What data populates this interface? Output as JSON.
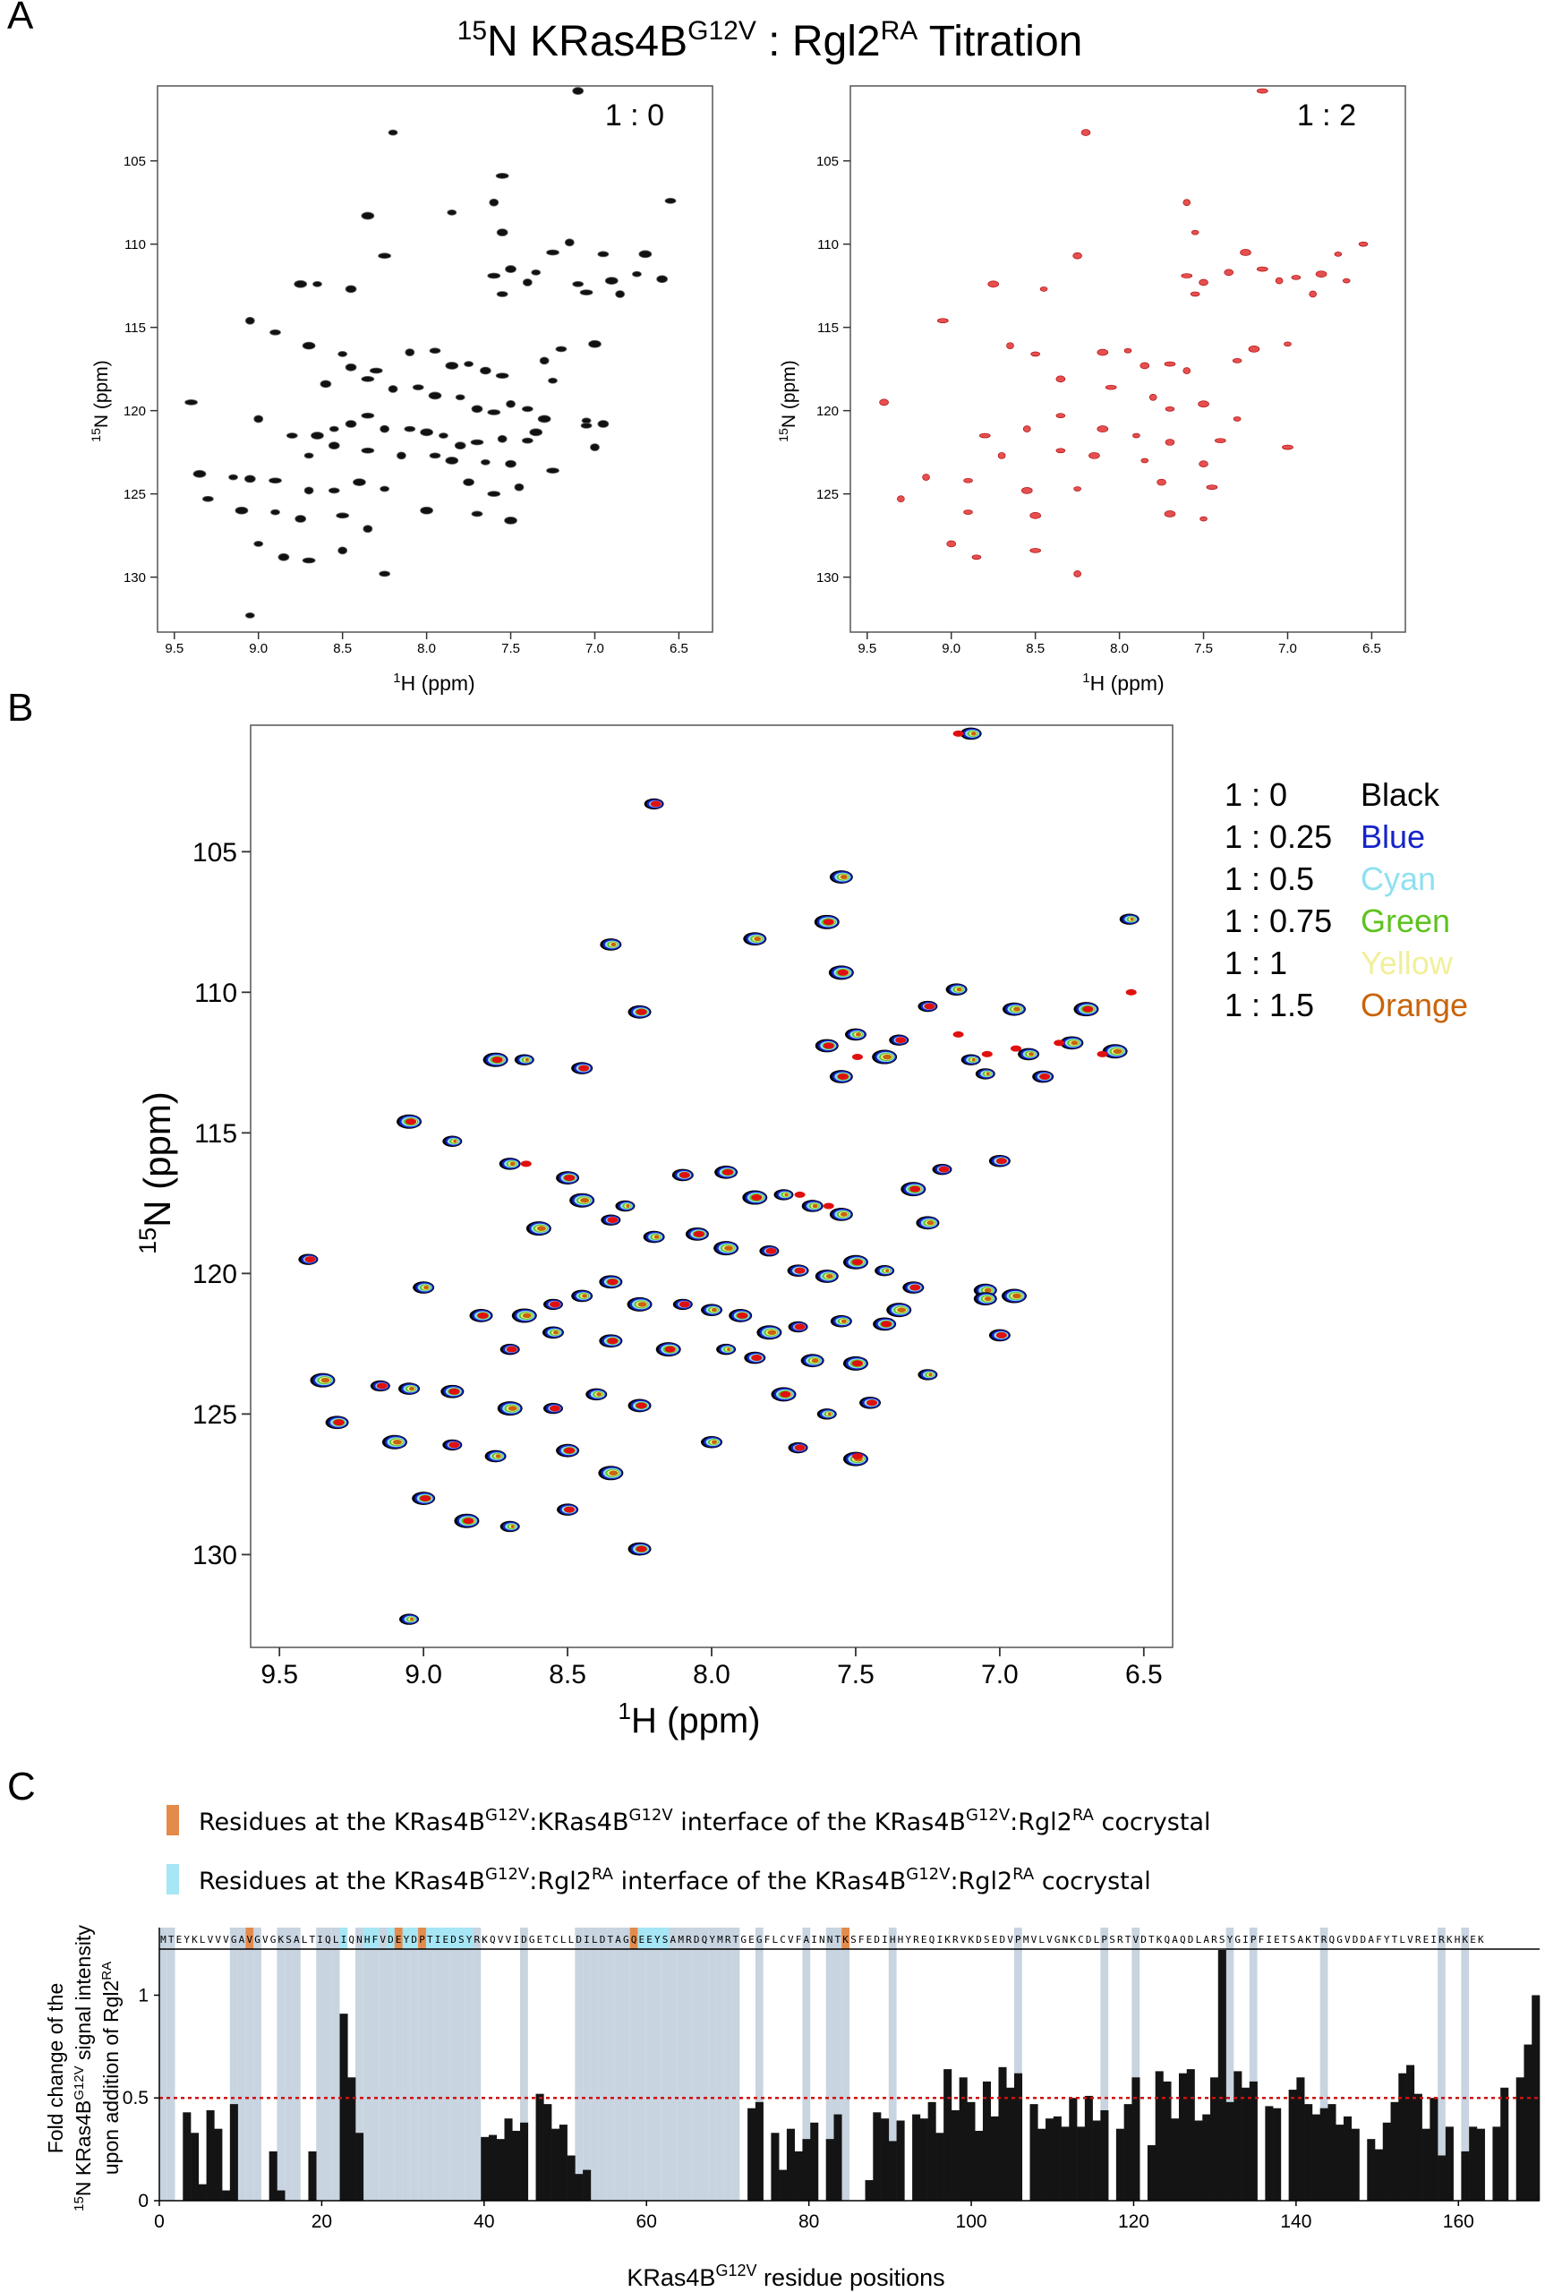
{
  "figure": {
    "title": {
      "prefix_sup": "15",
      "main": "N KRas4B",
      "sup1": "G12V",
      "middle": " : Rgl2",
      "sup2": "RA",
      "suffix": " Titration"
    },
    "panel_letters": [
      "A",
      "B",
      "C"
    ]
  },
  "panel_a": {
    "left_label": "1 : 0",
    "right_label": "1 : 2",
    "ylabel": {
      "sup": "15",
      "main": "N (ppm)"
    },
    "xlabel": {
      "sup": "1",
      "main": "H (ppm)"
    }
  },
  "panel_b": {
    "ylabel": {
      "sup": "15",
      "main": "N (ppm)"
    },
    "xlabel": {
      "sup": "1",
      "main": "H (ppm)"
    },
    "legend": [
      {
        "ratio": "1 : 0",
        "name": "Black",
        "color": "#000000"
      },
      {
        "ratio": "1 : 0.25",
        "name": "Blue",
        "color": "#1424c8"
      },
      {
        "ratio": "1 : 0.5",
        "name": "Cyan",
        "color": "#8ee0f0"
      },
      {
        "ratio": "1 : 0.75",
        "name": "Green",
        "color": "#5cc31e"
      },
      {
        "ratio": "1 : 1",
        "name": "Yellow",
        "color": "#f2ef9a"
      },
      {
        "ratio": "1 : 1.5",
        "name": "Orange",
        "color": "#c8640a"
      }
    ]
  },
  "panel_c": {
    "legend": [
      {
        "text": "Residues at the KRas4B^G12V:KRas4B^G12V interface of the KRas4B^G12V:Rgl2^RA cocrystal",
        "color": "#e38b4b"
      },
      {
        "text": "Residues at the KRas4B^G12V:Rgl2^RA interface of the KRas4B^G12V:Rgl2^RA cocrystal",
        "color": "#a6e6f5"
      }
    ],
    "sequence": "MTEYKLVVVGAVGVGKSALTIQLIQNHFVDEYDPTIEDSYRKQVVIDGETCLLDILDTAGQEEYSAMRDQYMRTGEGFLCVFAINNTKSFEDIHHYREQIKRVKDSEDVPMVLVGNKCDLPSRTVDTKQAQDLARSYGIPFIETSAKTRQGVDDAFYTLVREIRKHKEK",
    "ylabel_lines": [
      "Fold change of the",
      "15N KRas4B G12V signal intensity",
      "upon addition of Rgl2 RA"
    ],
    "xlabel": "KRas4B G12V residue positions"
  },
  "chart_data": [
    {
      "type": "scatter",
      "title": "1 : 0",
      "xlabel": "1H (ppm)",
      "ylabel": "15N (ppm)",
      "xlim": [
        9.6,
        6.3
      ],
      "ylim": [
        100.5,
        133.3
      ],
      "x_ticks": [
        9.5,
        9.0,
        8.5,
        8.0,
        7.5,
        7.0,
        6.5
      ],
      "y_ticks": [
        105,
        110,
        115,
        120,
        125,
        130
      ],
      "color": "#000000",
      "points": [
        [
          8.2,
          103.3
        ],
        [
          7.1,
          100.8
        ],
        [
          7.55,
          105.9
        ],
        [
          7.6,
          107.5
        ],
        [
          6.55,
          107.4
        ],
        [
          8.35,
          108.3
        ],
        [
          7.85,
          108.1
        ],
        [
          7.55,
          109.3
        ],
        [
          7.25,
          110.5
        ],
        [
          7.15,
          109.9
        ],
        [
          6.95,
          110.6
        ],
        [
          6.7,
          110.6
        ],
        [
          7.35,
          111.7
        ],
        [
          7.5,
          111.5
        ],
        [
          7.6,
          111.9
        ],
        [
          7.4,
          112.3
        ],
        [
          7.1,
          112.4
        ],
        [
          6.9,
          112.2
        ],
        [
          6.75,
          111.8
        ],
        [
          6.6,
          112.1
        ],
        [
          7.05,
          112.9
        ],
        [
          6.85,
          113.0
        ],
        [
          7.55,
          113.0
        ],
        [
          8.75,
          112.4
        ],
        [
          8.65,
          112.4
        ],
        [
          8.45,
          112.7
        ],
        [
          8.25,
          110.7
        ],
        [
          9.05,
          114.6
        ],
        [
          8.9,
          115.3
        ],
        [
          8.7,
          116.1
        ],
        [
          8.5,
          116.6
        ],
        [
          8.45,
          117.4
        ],
        [
          8.3,
          117.6
        ],
        [
          8.1,
          116.5
        ],
        [
          7.95,
          116.4
        ],
        [
          7.85,
          117.3
        ],
        [
          7.75,
          117.2
        ],
        [
          7.65,
          117.6
        ],
        [
          7.55,
          117.9
        ],
        [
          7.3,
          117.0
        ],
        [
          7.2,
          116.3
        ],
        [
          7.0,
          116.0
        ],
        [
          7.25,
          118.2
        ],
        [
          8.6,
          118.4
        ],
        [
          8.35,
          118.1
        ],
        [
          8.2,
          118.7
        ],
        [
          8.05,
          118.6
        ],
        [
          7.95,
          119.1
        ],
        [
          7.8,
          119.2
        ],
        [
          7.7,
          119.9
        ],
        [
          7.6,
          120.1
        ],
        [
          7.5,
          119.6
        ],
        [
          7.4,
          119.9
        ],
        [
          7.3,
          120.5
        ],
        [
          7.05,
          120.6
        ],
        [
          6.95,
          120.8
        ],
        [
          9.4,
          119.5
        ],
        [
          9.0,
          120.5
        ],
        [
          8.8,
          121.5
        ],
        [
          8.65,
          121.5
        ],
        [
          8.55,
          121.1
        ],
        [
          8.45,
          120.8
        ],
        [
          8.35,
          120.3
        ],
        [
          8.25,
          121.1
        ],
        [
          8.1,
          121.1
        ],
        [
          8.0,
          121.3
        ],
        [
          7.9,
          121.5
        ],
        [
          7.8,
          122.1
        ],
        [
          7.7,
          121.9
        ],
        [
          7.55,
          121.7
        ],
        [
          7.4,
          121.8
        ],
        [
          7.35,
          121.3
        ],
        [
          8.7,
          122.7
        ],
        [
          8.55,
          122.1
        ],
        [
          8.35,
          122.4
        ],
        [
          8.15,
          122.7
        ],
        [
          7.95,
          122.7
        ],
        [
          7.85,
          123.0
        ],
        [
          7.65,
          123.1
        ],
        [
          7.5,
          123.2
        ],
        [
          7.25,
          123.6
        ],
        [
          7.0,
          122.2
        ],
        [
          7.05,
          120.9
        ],
        [
          9.35,
          123.8
        ],
        [
          9.15,
          124.0
        ],
        [
          9.05,
          124.1
        ],
        [
          8.9,
          124.2
        ],
        [
          8.7,
          124.8
        ],
        [
          8.55,
          124.8
        ],
        [
          8.4,
          124.3
        ],
        [
          8.25,
          124.7
        ],
        [
          7.75,
          124.3
        ],
        [
          7.6,
          125.0
        ],
        [
          7.45,
          124.6
        ],
        [
          9.3,
          125.3
        ],
        [
          9.1,
          126.0
        ],
        [
          8.9,
          126.1
        ],
        [
          8.75,
          126.5
        ],
        [
          8.5,
          126.3
        ],
        [
          8.35,
          127.1
        ],
        [
          7.7,
          126.2
        ],
        [
          8.0,
          126.0
        ],
        [
          9.0,
          128.0
        ],
        [
          8.85,
          128.8
        ],
        [
          8.7,
          129.0
        ],
        [
          8.5,
          128.4
        ],
        [
          8.25,
          129.8
        ],
        [
          7.5,
          126.6
        ],
        [
          9.05,
          132.3
        ]
      ]
    },
    {
      "type": "scatter",
      "title": "1 : 2",
      "xlabel": "1H (ppm)",
      "ylabel": "15N (ppm)",
      "xlim": [
        9.6,
        6.3
      ],
      "ylim": [
        100.5,
        133.3
      ],
      "x_ticks": [
        9.5,
        9.0,
        8.5,
        8.0,
        7.5,
        7.0,
        6.5
      ],
      "y_ticks": [
        105,
        110,
        115,
        120,
        125,
        130
      ],
      "color": "#d42020",
      "points": [
        [
          7.55,
          109.3
        ],
        [
          8.2,
          103.3
        ],
        [
          7.15,
          100.8
        ],
        [
          7.6,
          107.5
        ],
        [
          6.55,
          110.0
        ],
        [
          7.25,
          110.5
        ],
        [
          6.7,
          110.6
        ],
        [
          7.35,
          111.7
        ],
        [
          7.15,
          111.5
        ],
        [
          7.05,
          112.2
        ],
        [
          6.95,
          112.0
        ],
        [
          6.8,
          111.8
        ],
        [
          6.65,
          112.2
        ],
        [
          7.5,
          112.3
        ],
        [
          7.6,
          111.9
        ],
        [
          6.85,
          113.0
        ],
        [
          7.55,
          113.0
        ],
        [
          8.75,
          112.4
        ],
        [
          8.45,
          112.7
        ],
        [
          8.25,
          110.7
        ],
        [
          9.05,
          114.6
        ],
        [
          8.65,
          116.1
        ],
        [
          8.5,
          116.6
        ],
        [
          8.1,
          116.5
        ],
        [
          7.95,
          116.4
        ],
        [
          7.85,
          117.3
        ],
        [
          7.7,
          117.2
        ],
        [
          7.6,
          117.6
        ],
        [
          7.3,
          117.0
        ],
        [
          7.2,
          116.3
        ],
        [
          7.0,
          116.0
        ],
        [
          8.35,
          118.1
        ],
        [
          8.05,
          118.6
        ],
        [
          7.8,
          119.2
        ],
        [
          7.7,
          119.9
        ],
        [
          7.5,
          119.6
        ],
        [
          7.3,
          120.5
        ],
        [
          9.4,
          119.5
        ],
        [
          8.8,
          121.5
        ],
        [
          8.55,
          121.1
        ],
        [
          8.35,
          120.3
        ],
        [
          8.1,
          121.1
        ],
        [
          7.9,
          121.5
        ],
        [
          7.7,
          121.9
        ],
        [
          7.4,
          121.8
        ],
        [
          8.7,
          122.7
        ],
        [
          8.35,
          122.4
        ],
        [
          8.15,
          122.7
        ],
        [
          7.85,
          123.0
        ],
        [
          7.5,
          123.2
        ],
        [
          7.0,
          122.2
        ],
        [
          9.15,
          124.0
        ],
        [
          8.9,
          124.2
        ],
        [
          8.55,
          124.8
        ],
        [
          8.25,
          124.7
        ],
        [
          7.75,
          124.3
        ],
        [
          7.45,
          124.6
        ],
        [
          9.3,
          125.3
        ],
        [
          8.9,
          126.1
        ],
        [
          8.5,
          126.3
        ],
        [
          7.5,
          126.5
        ],
        [
          9.0,
          128.0
        ],
        [
          8.5,
          128.4
        ],
        [
          8.25,
          129.8
        ],
        [
          8.85,
          128.8
        ],
        [
          7.7,
          126.2
        ]
      ]
    },
    {
      "type": "scatter",
      "title": "",
      "xlabel": "1H (ppm)",
      "ylabel": "15N (ppm)",
      "xlim": [
        9.6,
        6.4
      ],
      "ylim": [
        100.5,
        133.3
      ],
      "x_ticks": [
        9.5,
        9.0,
        8.5,
        8.0,
        7.5,
        7.0,
        6.5
      ],
      "y_ticks": [
        105,
        110,
        115,
        120,
        125,
        130
      ],
      "series": [
        {
          "name": "1 : 0",
          "color": "#000000"
        },
        {
          "name": "1 : 0.25",
          "color": "#1424c8"
        },
        {
          "name": "1 : 0.5",
          "color": "#8ee0f0"
        },
        {
          "name": "1 : 0.75",
          "color": "#5cc31e"
        },
        {
          "name": "1 : 1",
          "color": "#f2ef9a"
        },
        {
          "name": "1 : 1.5",
          "color": "#c8640a"
        }
      ],
      "legend_position": "right"
    },
    {
      "type": "bar",
      "xlabel": "KRas4B G12V residue positions",
      "ylabel": "Fold change of the 15N KRas4B G12V signal intensity upon addition of Rgl2 RA",
      "xlim": [
        0,
        170
      ],
      "ylim": [
        0,
        1.22
      ],
      "x_ticks": [
        0,
        20,
        40,
        60,
        80,
        100,
        120,
        140,
        160
      ],
      "y_ticks": [
        0,
        0.5,
        1
      ],
      "reference_line": 0.5,
      "bar_color": "#141414",
      "unassigned_residues": [
        1,
        2,
        10,
        11,
        12,
        13,
        16,
        17,
        18,
        21,
        22,
        23,
        26,
        27,
        28,
        29,
        30,
        31,
        32,
        33,
        34,
        35,
        36,
        37,
        38,
        39,
        40,
        41,
        47,
        54,
        55,
        56,
        57,
        58,
        59,
        60,
        61,
        62,
        63,
        64,
        65,
        66,
        67,
        68,
        69,
        70,
        71,
        72,
        73,
        74,
        77,
        83,
        86,
        87,
        88,
        94,
        110,
        121,
        125,
        137,
        140,
        149,
        164,
        167
      ],
      "interface_kras_residues": [
        12,
        31,
        34,
        61,
        88
      ],
      "interface_rgl2_residues": [
        24,
        27,
        28,
        30,
        32,
        33,
        35,
        36,
        37,
        38,
        39,
        40,
        62,
        63,
        64,
        65
      ],
      "values": [
        0,
        0,
        0,
        0.43,
        0.33,
        0.08,
        0.44,
        0.35,
        0.05,
        0.47,
        0,
        0,
        0,
        0,
        0.24,
        0.05,
        0,
        0,
        0,
        0.24,
        0,
        0,
        0,
        0.91,
        0.6,
        0.33,
        0,
        0,
        0,
        0,
        0,
        0,
        0,
        0,
        0,
        0,
        0,
        0,
        0,
        0,
        0,
        0.31,
        0.32,
        0.3,
        0.4,
        0.34,
        0.38,
        0,
        0.52,
        0.47,
        0.35,
        0.37,
        0.22,
        0.13,
        0.15,
        0,
        0,
        0,
        0,
        0,
        0,
        0,
        0,
        0,
        0,
        0,
        0,
        0,
        0,
        0,
        0,
        0,
        0,
        0,
        0,
        0.45,
        0.48,
        0,
        0.33,
        0.15,
        0.35,
        0.24,
        0.3,
        0.38,
        0,
        0.3,
        0.42,
        0,
        0,
        0,
        0.1,
        0.43,
        0.4,
        0.29,
        0.39,
        0,
        0.42,
        0.4,
        0.48,
        0.33,
        0.64,
        0.44,
        0.6,
        0.48,
        0.34,
        0.58,
        0.41,
        0.65,
        0.55,
        0.62,
        0,
        0.47,
        0.35,
        0.4,
        0.41,
        0.36,
        0.5,
        0.36,
        0.51,
        0.39,
        0.44,
        0,
        0.35,
        0.47,
        0.6,
        0,
        0.27,
        0.63,
        0.58,
        0.4,
        0.62,
        0.64,
        0.39,
        0.42,
        0.6,
        1.22,
        0.48,
        0.63,
        0.55,
        0.58,
        0,
        0.46,
        0.45,
        0,
        0.54,
        0.6,
        0.47,
        0.42,
        0.45,
        0.47,
        0.37,
        0.41,
        0.35,
        0,
        0.3,
        0.25,
        0.38,
        0.48,
        0.62,
        0.66,
        0.52,
        0.35,
        0.5,
        0.22,
        0.36,
        0,
        0.24,
        0.36,
        0.35,
        0,
        0.36,
        0.55,
        0,
        0.6,
        0.76,
        1.0
      ]
    }
  ]
}
